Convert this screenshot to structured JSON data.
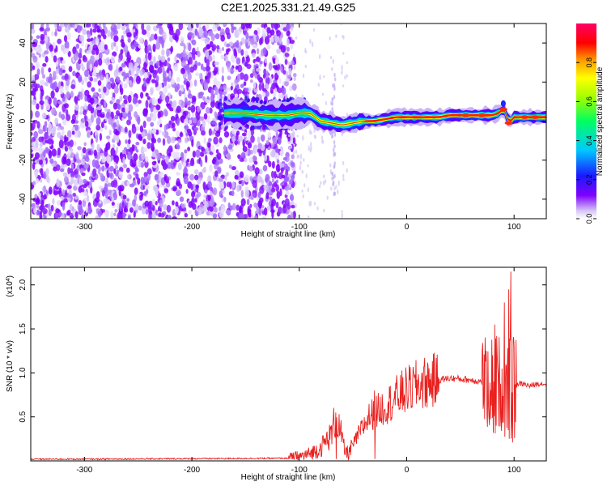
{
  "figure": {
    "title": "C2E1.2025.331.21.49.G25"
  },
  "chart_data": [
    {
      "type": "heatmap",
      "name": "spectrogram",
      "title": "C2E1.2025.331.21.49.G25",
      "xlabel": "Height of straight line (km)",
      "ylabel": "Frequency (Hz)",
      "xlim": [
        -350,
        130
      ],
      "ylim": [
        -50,
        50
      ],
      "x_ticks": [
        -300,
        -200,
        -100,
        0,
        100
      ],
      "y_ticks": [
        -40,
        -20,
        0,
        20,
        40
      ],
      "noise_region_x": [
        -350,
        -110
      ],
      "signal_start_x": -170,
      "ridge": {
        "x": [
          -170,
          -150,
          -130,
          -110,
          -100,
          -90,
          -80,
          -70,
          -60,
          -50,
          -40,
          -30,
          -20,
          -10,
          0,
          10,
          20,
          30,
          40,
          50,
          60,
          70,
          80,
          85,
          90,
          92,
          95,
          100,
          110,
          120,
          130
        ],
        "frequency": [
          4,
          4,
          3,
          3,
          4,
          4,
          0,
          -1,
          -2,
          -1,
          0,
          0,
          1,
          2,
          2,
          2,
          2,
          2,
          3,
          3,
          3,
          3,
          3,
          4,
          6,
          5,
          -1,
          2,
          2,
          2,
          2
        ]
      },
      "colorbar": {
        "label": "Normalized spectral amplitude",
        "range": [
          0,
          1
        ],
        "ticks": [
          0.0,
          0.2,
          0.4,
          0.6,
          0.8
        ],
        "tick_labels": [
          "0.0",
          "0.2",
          "0.4",
          "0.6",
          "0.8"
        ]
      }
    },
    {
      "type": "line",
      "name": "snr",
      "xlabel": "Height of straight line (km)",
      "ylabel": "SNR (10 * v/v)",
      "multiplier_label": "(x10",
      "multiplier_exp": "4",
      "xlim": [
        -350,
        130
      ],
      "ylim": [
        0,
        2.2
      ],
      "x_ticks": [
        -300,
        -200,
        -100,
        0,
        100
      ],
      "y_ticks": [
        0.5,
        1.0,
        1.5,
        2.0
      ],
      "y_tick_labels": [
        "0.5",
        "1.0",
        "1.5",
        "2.0"
      ],
      "color": "#e8201e",
      "envelope": {
        "x": [
          -350,
          -300,
          -200,
          -110,
          -100,
          -90,
          -80,
          -70,
          -66,
          -62,
          -58,
          -54,
          -50,
          -45,
          -40,
          -35,
          -30,
          -20,
          -10,
          0,
          10,
          20,
          30,
          40,
          50,
          60,
          70,
          75,
          80,
          85,
          90,
          95,
          100,
          105,
          110,
          115,
          120,
          125,
          130
        ],
        "y": [
          0.02,
          0.02,
          0.025,
          0.03,
          0.05,
          0.08,
          0.15,
          0.3,
          0.5,
          0.35,
          0.12,
          0.08,
          0.18,
          0.3,
          0.4,
          0.5,
          0.55,
          0.62,
          0.72,
          0.8,
          0.86,
          0.9,
          0.92,
          0.94,
          0.93,
          0.92,
          0.9,
          0.88,
          0.92,
          0.9,
          0.88,
          0.85,
          0.86,
          0.88,
          0.87,
          0.85,
          0.87,
          0.88,
          0.87
        ]
      },
      "spikes": [
        {
          "x": 97,
          "y": 2.15
        },
        {
          "x": 95,
          "y": 1.95
        },
        {
          "x": 91,
          "y": 1.8
        },
        {
          "x": 82,
          "y": 1.55
        },
        {
          "x": 100,
          "y": 1.3
        },
        {
          "x": 80,
          "y": 1.2
        },
        {
          "x": -66,
          "y": 0.55
        },
        {
          "x": -30,
          "y": 0.8
        }
      ]
    }
  ],
  "colors": {
    "axis": "#000000",
    "signal_line": "#e8201e",
    "noise_hi": "#7f00ff",
    "noise_lo": "#cbb6f7"
  }
}
